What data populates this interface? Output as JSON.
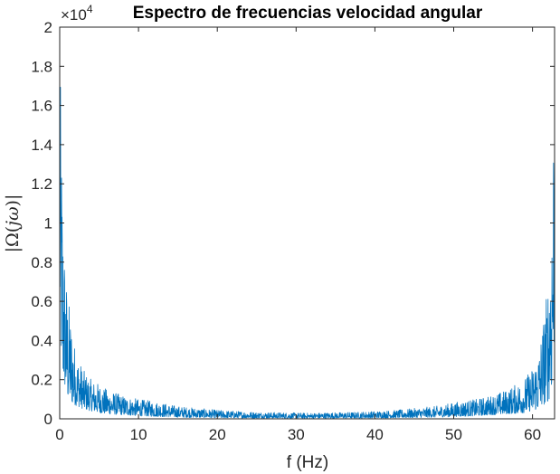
{
  "chart_data": {
    "type": "line",
    "title": "Espectro de frecuencias velocidad angular",
    "xlabel": "f (Hz)",
    "ylabel": {
      "prefix": "|Ω(",
      "var": "jω",
      "suffix": ")|"
    },
    "y_exponent": {
      "base": "×10",
      "power": "4"
    },
    "xlim": [
      0,
      62.8
    ],
    "ylim": [
      0,
      20000
    ],
    "x_ticks": [
      0,
      10,
      20,
      30,
      40,
      50,
      60
    ],
    "x_tick_labels": [
      "0",
      "10",
      "20",
      "30",
      "40",
      "50",
      "60"
    ],
    "y_ticks": [
      0,
      2000,
      4000,
      6000,
      8000,
      10000,
      12000,
      14000,
      16000,
      18000,
      20000
    ],
    "y_tick_labels": [
      "0",
      "0.2",
      "0.4",
      "0.6",
      "0.8",
      "1",
      "1.2",
      "1.4",
      "1.6",
      "1.8",
      "2"
    ],
    "grid": false,
    "legend": "none",
    "series": [
      {
        "color": "#0072BD",
        "shape": "symmetric spectrum, dense oscillating magnitude",
        "x": [
          0.0,
          0.1,
          0.2,
          0.4,
          0.7,
          1.0,
          1.5,
          2.0,
          3.0,
          4.0,
          5.0,
          6.0,
          8.0,
          10.0,
          12.0,
          15.0,
          20.0,
          25.0,
          31.4,
          37.8,
          42.8,
          47.8,
          50.8,
          52.8,
          54.8,
          56.8,
          58.8,
          59.8,
          60.8,
          61.3,
          61.8,
          62.1,
          62.4,
          62.6,
          62.7,
          62.8
        ],
        "envelope_max": [
          19300,
          17000,
          15000,
          11000,
          8000,
          6500,
          5000,
          3500,
          2500,
          2000,
          1800,
          1500,
          1200,
          1000,
          900,
          650,
          450,
          350,
          300,
          350,
          450,
          650,
          900,
          1000,
          1200,
          1500,
          2000,
          2500,
          3500,
          5000,
          6500,
          8000,
          11000,
          15000,
          17000,
          19300
        ],
        "envelope_min": [
          5000,
          4000,
          3000,
          2000,
          1500,
          1000,
          800,
          700,
          500,
          400,
          300,
          250,
          200,
          150,
          120,
          80,
          50,
          40,
          30,
          40,
          50,
          80,
          120,
          150,
          200,
          250,
          300,
          400,
          500,
          700,
          800,
          1000,
          1500,
          2000,
          3000,
          5000
        ]
      }
    ]
  }
}
